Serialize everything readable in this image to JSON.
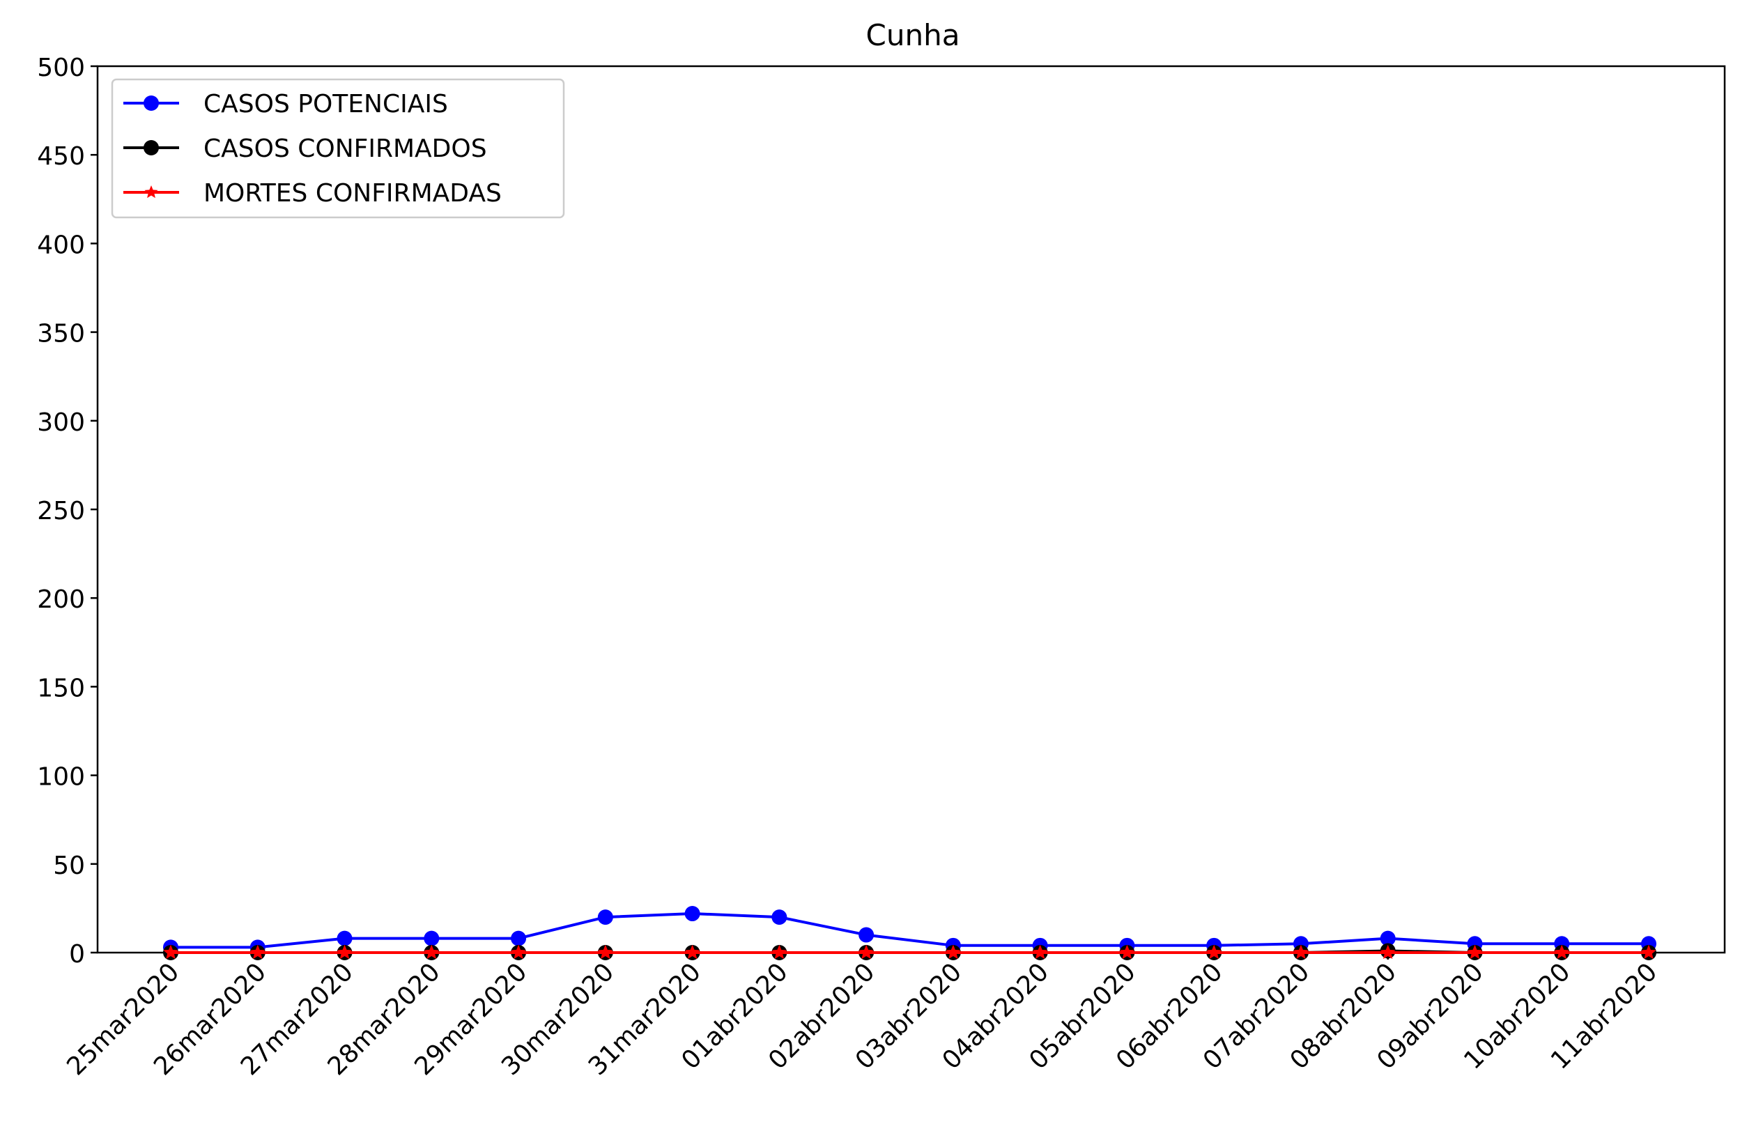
{
  "chart_data": {
    "type": "line",
    "title": "Cunha",
    "xlabel": "",
    "ylabel": "",
    "ylim": [
      0,
      500
    ],
    "yticks": [
      0,
      50,
      100,
      150,
      200,
      250,
      300,
      350,
      400,
      450,
      500
    ],
    "categories": [
      "25mar2020",
      "26mar2020",
      "27mar2020",
      "28mar2020",
      "29mar2020",
      "30mar2020",
      "31mar2020",
      "01abr2020",
      "02abr2020",
      "03abr2020",
      "04abr2020",
      "05abr2020",
      "06abr2020",
      "07abr2020",
      "08abr2020",
      "09abr2020",
      "10abr2020",
      "11abr2020"
    ],
    "grid": false,
    "legend_position": "top-left",
    "series": [
      {
        "name": "CASOS POTENCIAIS",
        "color": "#0000ff",
        "marker": "circle",
        "values": [
          3,
          3,
          8,
          8,
          8,
          20,
          22,
          20,
          10,
          4,
          4,
          4,
          4,
          5,
          8,
          5,
          5,
          5
        ]
      },
      {
        "name": "CASOS CONFIRMADOS",
        "color": "#000000",
        "marker": "circle",
        "values": [
          0,
          0,
          0,
          0,
          0,
          0,
          0,
          0,
          0,
          0,
          0,
          0,
          0,
          0,
          1,
          0,
          0,
          0
        ]
      },
      {
        "name": "MORTES CONFIRMADAS",
        "color": "#ff0000",
        "marker": "star",
        "values": [
          0,
          0,
          0,
          0,
          0,
          0,
          0,
          0,
          0,
          0,
          0,
          0,
          0,
          0,
          0,
          0,
          0,
          0
        ]
      }
    ]
  }
}
